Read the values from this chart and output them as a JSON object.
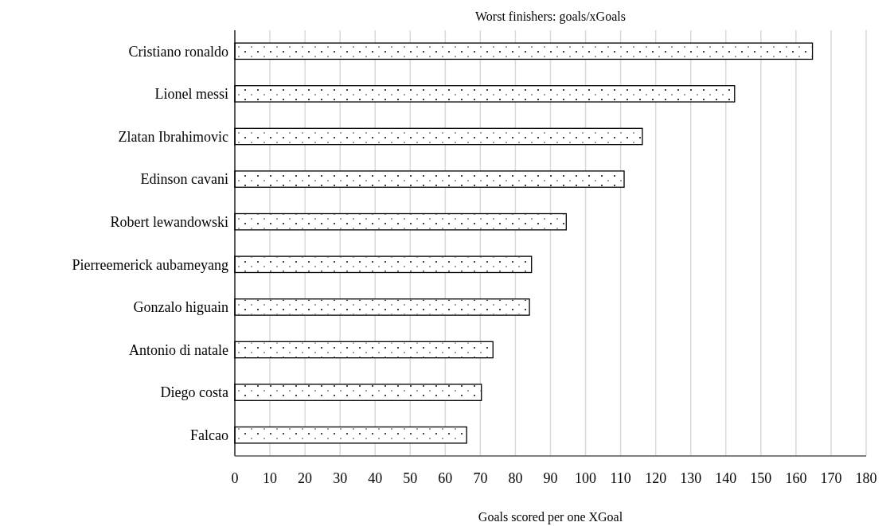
{
  "chart_data": {
    "type": "bar",
    "orientation": "horizontal",
    "title": "Worst finishers: goals/xGoals",
    "xlabel": "Goals scored per one XGoal",
    "categories": [
      "Cristiano ronaldo",
      "Lionel messi",
      "Zlatan Ibrahimovic",
      "Edinson cavani",
      "Robert lewandowski",
      "Pierreemerick aubameyang",
      "Gonzalo higuain",
      "Antonio di natale",
      "Diego costa",
      "Falcao"
    ],
    "values": [
      164.7,
      142.5,
      116.2,
      111,
      94.5,
      84.6,
      84,
      73.6,
      70.3,
      66.1
    ],
    "color": "#ffffff",
    "xlim": [
      0,
      180
    ],
    "xticks": [
      0,
      10,
      20,
      30,
      40,
      50,
      60,
      70,
      80,
      90,
      100,
      110,
      120,
      130,
      140,
      150,
      160,
      170,
      180
    ],
    "grid": "x"
  }
}
